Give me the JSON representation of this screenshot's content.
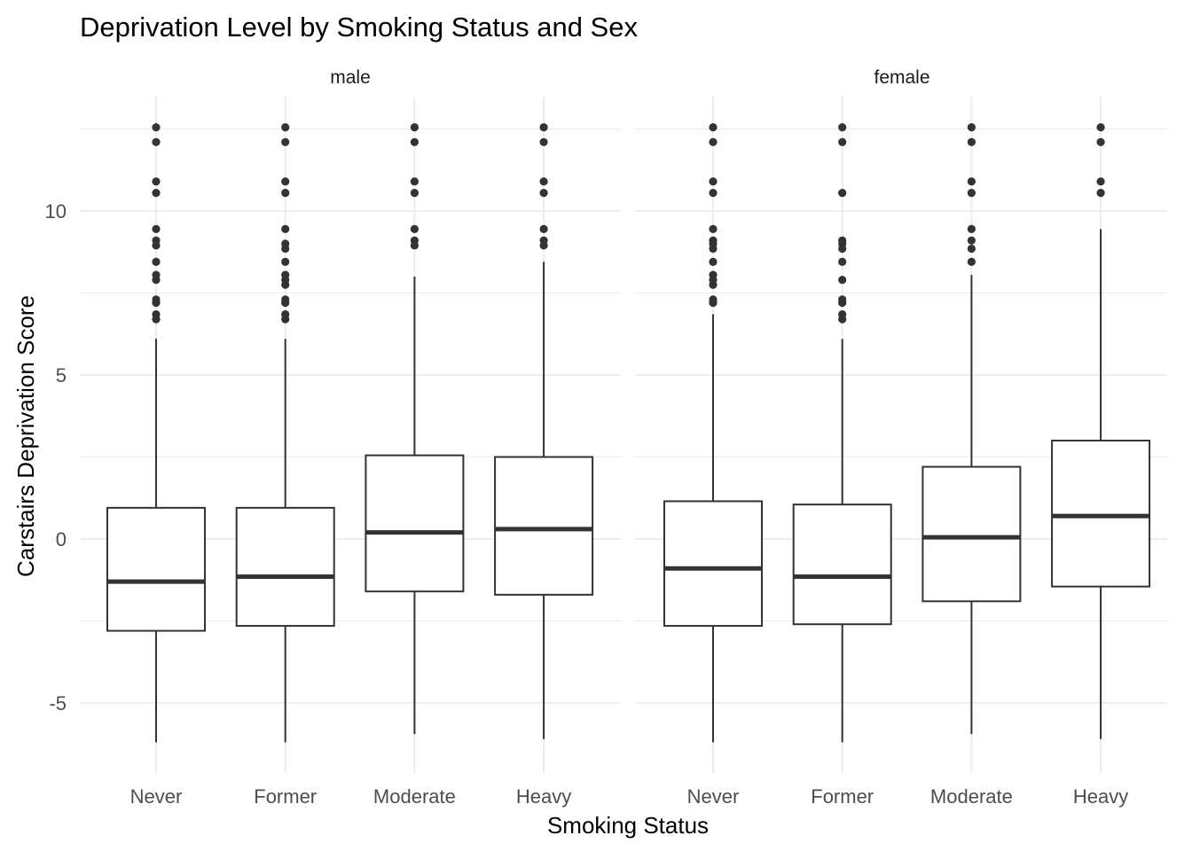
{
  "chart_data": {
    "type": "boxplot",
    "title": "Deprivation Level by Smoking Status and Sex",
    "xlabel": "Smoking Status",
    "ylabel": "Carstairs Deprivation Score",
    "categories": [
      "Never",
      "Former",
      "Moderate",
      "Heavy"
    ],
    "ylim": [
      -7,
      13.5
    ],
    "yticks": [
      -5,
      0,
      5,
      10
    ],
    "grid": true,
    "legend": "none",
    "colors": {
      "box": "#333333",
      "grid": "#ebebeb",
      "points": "#333333"
    },
    "panels": [
      {
        "label": "male",
        "boxes": [
          {
            "category": "Never",
            "min": -6.2,
            "q1": -2.8,
            "median": -1.3,
            "q3": 0.95,
            "max": 6.1,
            "outliers": [
              6.7,
              6.85,
              7.2,
              7.3,
              7.9,
              8.05,
              8.45,
              8.95,
              9.1,
              9.45,
              10.55,
              10.9,
              12.1,
              12.55
            ]
          },
          {
            "category": "Former",
            "min": -6.2,
            "q1": -2.65,
            "median": -1.15,
            "q3": 0.95,
            "max": 6.1,
            "outliers": [
              6.7,
              6.85,
              7.2,
              7.3,
              7.75,
              7.9,
              8.05,
              8.45,
              8.85,
              9.0,
              9.45,
              10.55,
              10.9,
              12.1,
              12.55
            ]
          },
          {
            "category": "Moderate",
            "min": -5.95,
            "q1": -1.6,
            "median": 0.2,
            "q3": 2.55,
            "max": 8.0,
            "outliers": [
              8.95,
              9.1,
              9.45,
              10.55,
              10.9,
              12.1,
              12.55
            ]
          },
          {
            "category": "Heavy",
            "min": -6.1,
            "q1": -1.7,
            "median": 0.3,
            "q3": 2.5,
            "max": 8.45,
            "outliers": [
              8.95,
              9.1,
              9.45,
              10.55,
              10.9,
              12.1,
              12.55
            ]
          }
        ]
      },
      {
        "label": "female",
        "boxes": [
          {
            "category": "Never",
            "min": -6.2,
            "q1": -2.65,
            "median": -0.9,
            "q3": 1.15,
            "max": 6.85,
            "outliers": [
              7.2,
              7.3,
              7.75,
              7.9,
              8.05,
              8.45,
              8.85,
              9.0,
              9.1,
              9.45,
              10.55,
              10.9,
              12.1,
              12.55
            ]
          },
          {
            "category": "Former",
            "min": -6.2,
            "q1": -2.6,
            "median": -1.15,
            "q3": 1.05,
            "max": 6.1,
            "outliers": [
              6.7,
              6.85,
              7.2,
              7.3,
              7.9,
              8.45,
              8.85,
              9.0,
              9.1,
              10.55,
              12.1,
              12.55
            ]
          },
          {
            "category": "Moderate",
            "min": -5.95,
            "q1": -1.9,
            "median": 0.05,
            "q3": 2.2,
            "max": 8.05,
            "outliers": [
              8.45,
              8.85,
              9.1,
              9.45,
              10.55,
              10.9,
              12.1,
              12.55
            ]
          },
          {
            "category": "Heavy",
            "min": -6.1,
            "q1": -1.45,
            "median": 0.7,
            "q3": 3.0,
            "max": 9.45,
            "outliers": [
              10.55,
              10.9,
              12.1,
              12.55
            ]
          }
        ]
      }
    ]
  }
}
